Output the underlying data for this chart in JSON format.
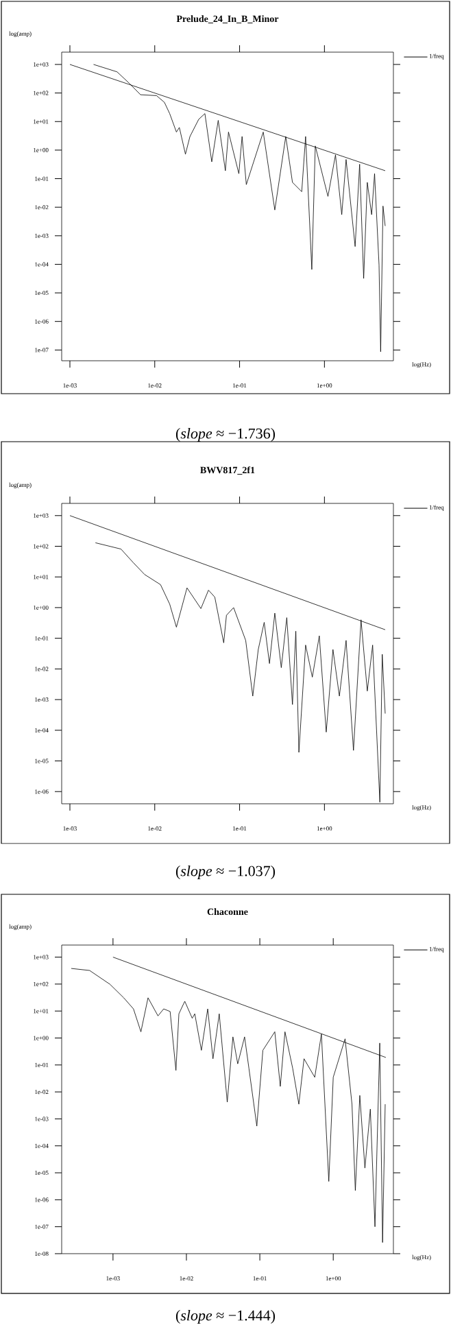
{
  "chart_data": [
    {
      "type": "line",
      "title": "Prelude_24_In_B_Minor",
      "xlabel": "log(Hz)",
      "ylabel": "log(amp)",
      "log": "xy",
      "legend": "top right",
      "xlim": [
        0.0008,
        6.5
      ],
      "ylim": [
        4.2e-08,
        2700
      ],
      "xticks": [
        {
          "value": 0.001,
          "label": "1e-03"
        },
        {
          "value": 0.01,
          "label": "1e-02"
        },
        {
          "value": 0.1,
          "label": "1e-01"
        },
        {
          "value": 1,
          "label": "1e+00"
        }
      ],
      "yticks": [
        {
          "value": 1000,
          "label": "1e+03"
        },
        {
          "value": 100,
          "label": "1e+02"
        },
        {
          "value": 10,
          "label": "1e+01"
        },
        {
          "value": 1,
          "label": "1e+00"
        },
        {
          "value": 0.1,
          "label": "1e-01"
        },
        {
          "value": 0.01,
          "label": "1e-02"
        },
        {
          "value": 0.001,
          "label": "1e-03"
        },
        {
          "value": 0.0001,
          "label": "1e-04"
        },
        {
          "value": 1e-05,
          "label": "1e-05"
        },
        {
          "value": 1e-06,
          "label": "1e-06"
        },
        {
          "value": 1e-07,
          "label": "1e-07"
        }
      ],
      "series": [
        {
          "color": "#000000",
          "x": [
            0.0019,
            0.0036,
            0.005,
            0.0068,
            0.0105,
            0.013,
            0.015,
            0.018,
            0.0195,
            0.023,
            0.026,
            0.033,
            0.039,
            0.047,
            0.056,
            0.068,
            0.074,
            0.098,
            0.107,
            0.12,
            0.19,
            0.26,
            0.35,
            0.42,
            0.54,
            0.6,
            0.71,
            0.78,
            1.1,
            1.35,
            1.6,
            1.8,
            2.3,
            2.6,
            2.9,
            3.2,
            3.6,
            3.9,
            4.4,
            4.6,
            4.9,
            5.2
          ],
          "values": [
            1000,
            550,
            220,
            87,
            81,
            47,
            19,
            4.3,
            6.2,
            0.72,
            3.0,
            12,
            19,
            0.39,
            11,
            0.19,
            4.3,
            0.15,
            3.0,
            0.062,
            4.3,
            0.008,
            3.0,
            0.074,
            0.035,
            3.0,
            6.6e-05,
            1.4,
            0.024,
            0.68,
            0.0055,
            0.47,
            0.00042,
            0.32,
            3.2e-05,
            0.074,
            0.0055,
            0.15,
            9.5e-05,
            8.7e-08,
            0.011,
            0.0022
          ]
        },
        {
          "name": "1/freq",
          "color": "#000000",
          "x": [
            0.001,
            5.2
          ],
          "values": [
            1000,
            0.19
          ]
        }
      ],
      "annotations": [
        "(*slope* ≈ −1.736)"
      ]
    },
    {
      "type": "line",
      "title": "BWV817_2f1",
      "xlabel": "log(Hz)",
      "ylabel": "log(amp)",
      "log": "xy",
      "legend": "top right",
      "xlim": [
        0.0008,
        6.5
      ],
      "ylim": [
        4e-07,
        2500
      ],
      "xticks": [
        {
          "value": 0.001,
          "label": "1e-03"
        },
        {
          "value": 0.01,
          "label": "1e-02"
        },
        {
          "value": 0.1,
          "label": "1e-01"
        },
        {
          "value": 1,
          "label": "1e+00"
        }
      ],
      "yticks": [
        {
          "value": 1000,
          "label": "1e+03"
        },
        {
          "value": 100,
          "label": "1e+02"
        },
        {
          "value": 10,
          "label": "1e+01"
        },
        {
          "value": 1,
          "label": "1e+00"
        },
        {
          "value": 0.1,
          "label": "1e-01"
        },
        {
          "value": 0.01,
          "label": "1e-02"
        },
        {
          "value": 0.001,
          "label": "1e-03"
        },
        {
          "value": 0.0001,
          "label": "1e-04"
        },
        {
          "value": 1e-05,
          "label": "1e-05"
        },
        {
          "value": 1e-06,
          "label": "1e-06"
        }
      ],
      "series": [
        {
          "color": "#000000",
          "x": [
            0.002,
            0.004,
            0.0056,
            0.0076,
            0.0117,
            0.015,
            0.018,
            0.024,
            0.035,
            0.043,
            0.051,
            0.065,
            0.07,
            0.085,
            0.118,
            0.143,
            0.166,
            0.195,
            0.225,
            0.26,
            0.31,
            0.36,
            0.42,
            0.46,
            0.5,
            0.6,
            0.72,
            0.87,
            1.05,
            1.26,
            1.5,
            1.8,
            2.2,
            2.7,
            3.2,
            3.7,
            4.5,
            4.8,
            5.2
          ],
          "values": [
            130,
            81,
            29,
            12,
            5.6,
            1.3,
            0.23,
            4.4,
            0.93,
            3.7,
            2.2,
            0.071,
            0.56,
            1.0,
            0.085,
            0.0013,
            0.043,
            0.33,
            0.015,
            0.66,
            0.011,
            0.47,
            0.00069,
            0.17,
            1.9e-05,
            0.06,
            0.0054,
            0.12,
            8.7e-05,
            0.043,
            0.0013,
            0.085,
            2.2e-05,
            0.4,
            0.0019,
            0.06,
            4.5e-07,
            0.03,
            0.00035
          ]
        },
        {
          "name": "1/freq",
          "color": "#000000",
          "x": [
            0.001,
            5.2
          ],
          "values": [
            1000,
            0.19
          ]
        }
      ],
      "annotations": [
        "(*slope* ≈ −1.037)"
      ]
    },
    {
      "type": "line",
      "title": "Chaconne",
      "xlabel": "log(Hz)",
      "ylabel": "log(amp)",
      "log": "xy",
      "legend": "top right",
      "xlim": [
        0.0002,
        6.6
      ],
      "ylim": [
        1e-08,
        2800
      ],
      "xticks": [
        {
          "value": 0.001,
          "label": "1e-03"
        },
        {
          "value": 0.01,
          "label": "1e-02"
        },
        {
          "value": 0.1,
          "label": "1e-01"
        },
        {
          "value": 1,
          "label": "1e+00"
        }
      ],
      "yticks": [
        {
          "value": 1000,
          "label": "1e+03"
        },
        {
          "value": 100,
          "label": "1e+02"
        },
        {
          "value": 10,
          "label": "1e+01"
        },
        {
          "value": 1,
          "label": "1e+00"
        },
        {
          "value": 0.1,
          "label": "1e-01"
        },
        {
          "value": 0.01,
          "label": "1e-02"
        },
        {
          "value": 0.001,
          "label": "1e-03"
        },
        {
          "value": 0.0001,
          "label": "1e-04"
        },
        {
          "value": 1e-05,
          "label": "1e-05"
        },
        {
          "value": 1e-06,
          "label": "1e-06"
        },
        {
          "value": 1e-07,
          "label": "1e-07"
        },
        {
          "value": 1e-08,
          "label": "1e-08"
        }
      ],
      "series": [
        {
          "color": "#000000",
          "x": [
            0.00027,
            0.00048,
            0.00091,
            0.0014,
            0.0019,
            0.0024,
            0.003,
            0.0041,
            0.0049,
            0.006,
            0.0072,
            0.0079,
            0.0095,
            0.012,
            0.013,
            0.016,
            0.0195,
            0.023,
            0.028,
            0.036,
            0.043,
            0.05,
            0.062,
            0.071,
            0.091,
            0.11,
            0.16,
            0.19,
            0.22,
            0.28,
            0.34,
            0.4,
            0.56,
            0.69,
            0.87,
            1.0,
            1.45,
            1.8,
            2.0,
            2.3,
            2.7,
            3.2,
            3.7,
            4.3,
            4.7,
            5.1
          ],
          "values": [
            380,
            320,
            98,
            31,
            12,
            1.7,
            31,
            6.6,
            12,
            9.6,
            0.063,
            7.9,
            23,
            5.4,
            7.9,
            0.35,
            12,
            0.17,
            7.9,
            0.0042,
            1.1,
            0.11,
            1.1,
            0.076,
            0.00054,
            0.35,
            1.7,
            0.016,
            1.7,
            0.076,
            0.0035,
            0.17,
            0.035,
            1.4,
            4.8e-06,
            0.035,
            0.93,
            0.0035,
            2.2e-06,
            0.0074,
            1.5e-05,
            0.0023,
            1e-07,
            0.65,
            2.6e-08,
            0.0035
          ]
        },
        {
          "name": "1/freq",
          "color": "#000000",
          "x": [
            0.001,
            5.2
          ],
          "values": [
            1000,
            0.19
          ]
        }
      ],
      "annotations": [
        "(*slope* ≈ −1.444)"
      ]
    }
  ]
}
